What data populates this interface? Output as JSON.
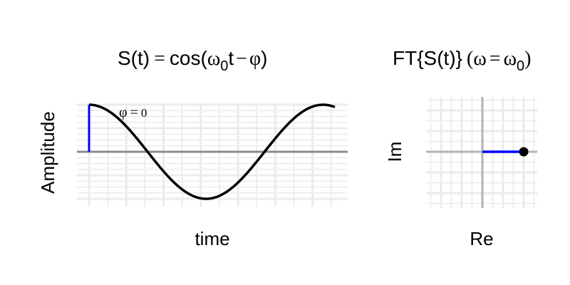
{
  "chart_data": [
    {
      "type": "line",
      "title": {
        "func": "S(t)",
        "eq": "=",
        "rhs_start": "cos(",
        "omega": "ω",
        "sub": "0",
        "t": "t",
        "minus": "−",
        "phi": "φ",
        "close": ")"
      },
      "xlabel": "time",
      "ylabel": "Amplitude",
      "annotation": {
        "phi": "φ",
        "eq": "=",
        "val": "0"
      },
      "ylim": [
        -1,
        1
      ],
      "x_start": 0,
      "x_end": 6.6,
      "phase": 0,
      "series": [
        {
          "function": "cos(t - phase)",
          "color": "#000000"
        }
      ],
      "phase_marker": {
        "x": 0,
        "y0": 0,
        "y1": 1,
        "color": "#0000ff"
      },
      "grid": true
    },
    {
      "type": "scatter",
      "title": {
        "prefix": "FT{S(t)}",
        "open": "(",
        "omega": "ω",
        "eq": "=",
        "omega2": "ω",
        "sub": "0",
        "close": ")"
      },
      "xlabel": "Re",
      "ylabel": "Im",
      "xlim": [
        -1.4,
        1.3
      ],
      "ylim": [
        -1.4,
        1.4
      ],
      "points": [
        {
          "re": 1,
          "im": 0,
          "color": "#000000"
        }
      ],
      "vector": {
        "from": [
          0,
          0
        ],
        "to": [
          1,
          0
        ],
        "color": "#0000ff"
      },
      "grid": true
    }
  ]
}
